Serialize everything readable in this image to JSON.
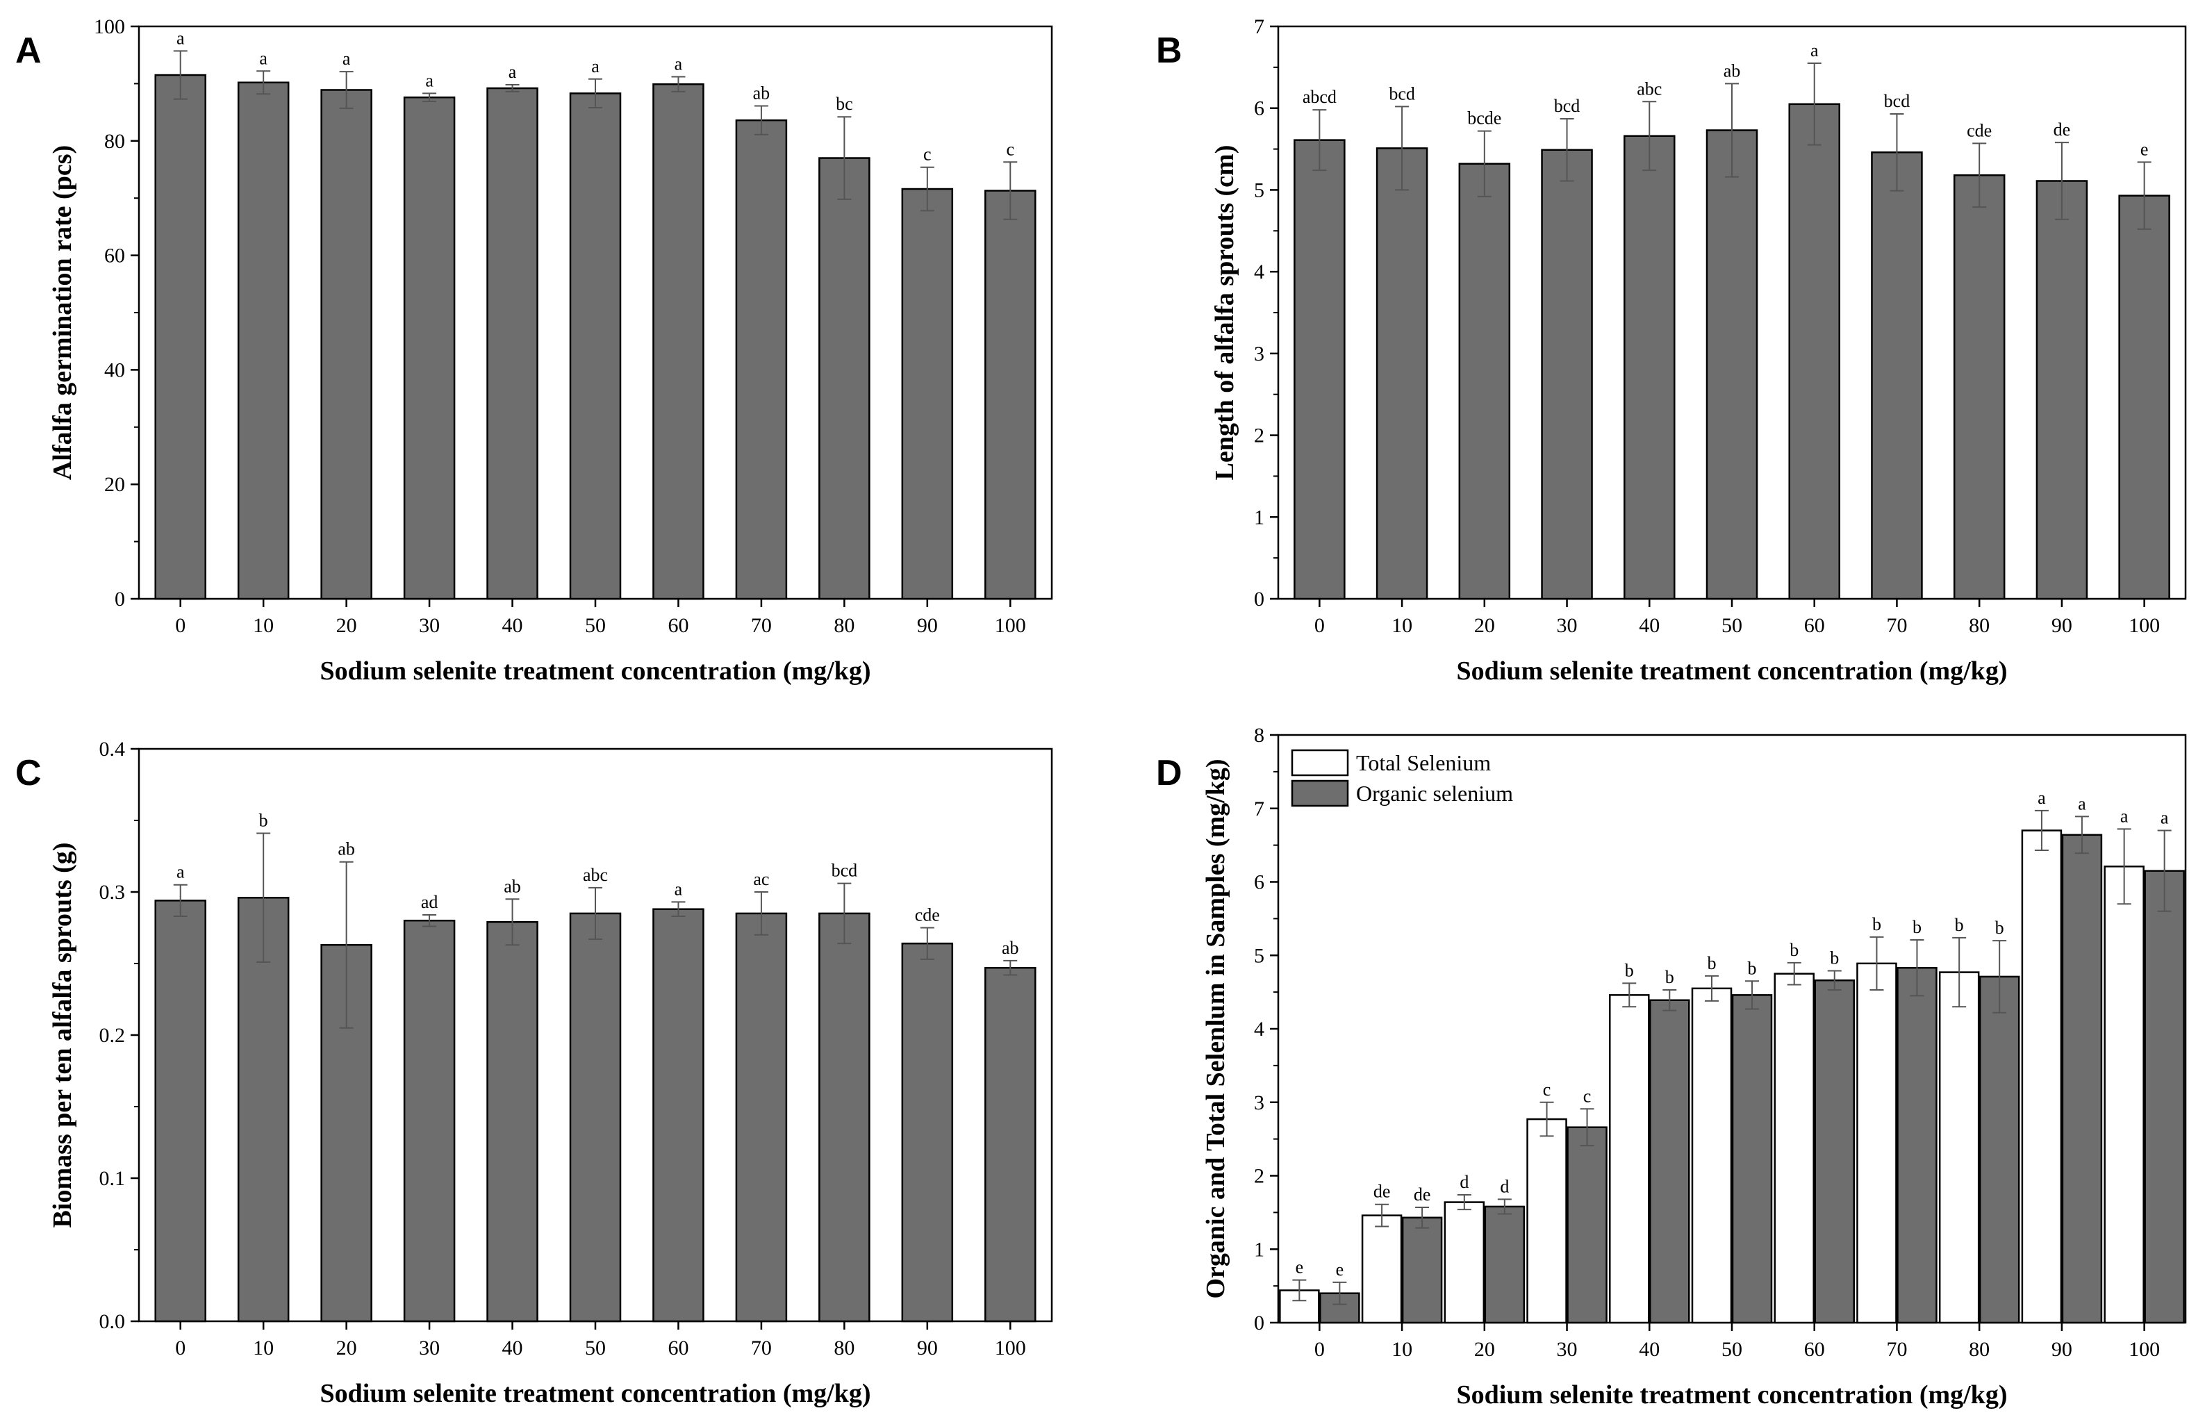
{
  "colors": {
    "bar_fill": "#6e6e6e",
    "bar_open_fill": "#ffffff",
    "axis": "#000000",
    "error": "#555555"
  },
  "chart_data": [
    {
      "id": "A",
      "panel_label": "A",
      "type": "bar",
      "categories": [
        "0",
        "10",
        "20",
        "30",
        "40",
        "50",
        "60",
        "70",
        "80",
        "90",
        "100"
      ],
      "series": [
        {
          "name": "Alfalfa germination rate",
          "values": [
            91.5,
            90.2,
            88.9,
            87.6,
            89.2,
            88.3,
            89.9,
            83.6,
            77.0,
            71.6,
            71.3
          ],
          "errors": [
            4.2,
            2.0,
            3.2,
            0.7,
            0.6,
            2.5,
            1.3,
            2.5,
            7.2,
            3.8,
            5.0
          ],
          "labels": [
            "a",
            "a",
            "a",
            "a",
            "a",
            "a",
            "a",
            "ab",
            "bc",
            "c",
            "c"
          ]
        }
      ],
      "xlabel": "Sodium selenite treatment concentration (mg/kg)",
      "ylabel": "Alfalfa germination rate (pcs)",
      "ylim": [
        0,
        100
      ],
      "yticks": [
        0,
        20,
        40,
        60,
        80,
        100
      ],
      "ytick_labels": [
        "0",
        "20",
        "40",
        "60",
        "80",
        "100"
      ]
    },
    {
      "id": "B",
      "panel_label": "B",
      "type": "bar",
      "categories": [
        "0",
        "10",
        "20",
        "30",
        "40",
        "50",
        "60",
        "70",
        "80",
        "90",
        "100"
      ],
      "series": [
        {
          "name": "Length of alfalfa sprouts",
          "values": [
            5.61,
            5.51,
            5.32,
            5.49,
            5.66,
            5.73,
            6.05,
            5.46,
            5.18,
            5.11,
            4.93
          ],
          "errors": [
            0.37,
            0.51,
            0.4,
            0.38,
            0.42,
            0.57,
            0.5,
            0.47,
            0.39,
            0.47,
            0.41
          ],
          "labels": [
            "abcd",
            "bcd",
            "bcde",
            "bcd",
            "abc",
            "ab",
            "a",
            "bcd",
            "cde",
            "de",
            "e"
          ]
        }
      ],
      "xlabel": "Sodium selenite treatment concentration (mg/kg)",
      "ylabel": "Length of alfalfa sprouts (cm)",
      "ylim": [
        0,
        7
      ],
      "yticks": [
        0,
        1,
        2,
        3,
        4,
        5,
        6,
        7
      ],
      "ytick_labels": [
        "0",
        "1",
        "2",
        "3",
        "4",
        "5",
        "6",
        "7"
      ]
    },
    {
      "id": "C",
      "panel_label": "C",
      "type": "bar",
      "categories": [
        "0",
        "10",
        "20",
        "30",
        "40",
        "50",
        "60",
        "70",
        "80",
        "90",
        "100"
      ],
      "series": [
        {
          "name": "Biomass per ten alfalfa sprouts",
          "values": [
            0.294,
            0.296,
            0.263,
            0.28,
            0.279,
            0.285,
            0.288,
            0.285,
            0.285,
            0.264,
            0.247
          ],
          "errors": [
            0.011,
            0.045,
            0.058,
            0.004,
            0.016,
            0.018,
            0.005,
            0.015,
            0.021,
            0.011,
            0.005
          ],
          "labels": [
            "a",
            "b",
            "ab",
            "ad",
            "ab",
            "abc",
            "a",
            "ac",
            "bcd",
            "cde",
            "ab"
          ]
        }
      ],
      "xlabel": "Sodium selenite treatment concentration (mg/kg)",
      "ylabel": "Biomass per ten alfalfa sprouts (g)",
      "ylim": [
        0,
        0.4
      ],
      "yticks": [
        0,
        0.1,
        0.2,
        0.3,
        0.4
      ],
      "ytick_labels": [
        "0.0",
        "0.1",
        "0.2",
        "0.3",
        "0.4"
      ]
    },
    {
      "id": "D",
      "panel_label": "D",
      "type": "bar",
      "categories": [
        "0",
        "10",
        "20",
        "30",
        "40",
        "50",
        "60",
        "70",
        "80",
        "90",
        "100"
      ],
      "series": [
        {
          "name": "Total Selenium",
          "values": [
            0.44,
            1.46,
            1.64,
            2.77,
            4.46,
            4.55,
            4.75,
            4.89,
            4.77,
            6.7,
            6.21
          ],
          "errors": [
            0.14,
            0.15,
            0.1,
            0.23,
            0.16,
            0.17,
            0.15,
            0.36,
            0.47,
            0.27,
            0.51
          ],
          "labels": [
            "e",
            "de",
            "d",
            "c",
            "b",
            "b",
            "b",
            "b",
            "b",
            "a",
            "a"
          ]
        },
        {
          "name": "Organic selenium",
          "values": [
            0.4,
            1.43,
            1.58,
            2.66,
            4.39,
            4.46,
            4.66,
            4.83,
            4.71,
            6.64,
            6.15
          ],
          "errors": [
            0.15,
            0.14,
            0.1,
            0.25,
            0.14,
            0.19,
            0.13,
            0.38,
            0.49,
            0.25,
            0.55
          ],
          "labels": [
            "e",
            "de",
            "d",
            "c",
            "b",
            "b",
            "b",
            "b",
            "b",
            "a",
            "a"
          ]
        }
      ],
      "xlabel": "Sodium selenite treatment concentration (mg/kg)",
      "ylabel": "Organic and Total Selenlum in Samples (mg/kg)",
      "ylim": [
        0,
        8
      ],
      "yticks": [
        0,
        1,
        2,
        3,
        4,
        5,
        6,
        7,
        8
      ],
      "ytick_labels": [
        "0",
        "1",
        "2",
        "3",
        "4",
        "5",
        "6",
        "7",
        "8"
      ],
      "legend": [
        "Total Selenium",
        "Organic selenium"
      ],
      "legend_position": "top-left"
    }
  ]
}
